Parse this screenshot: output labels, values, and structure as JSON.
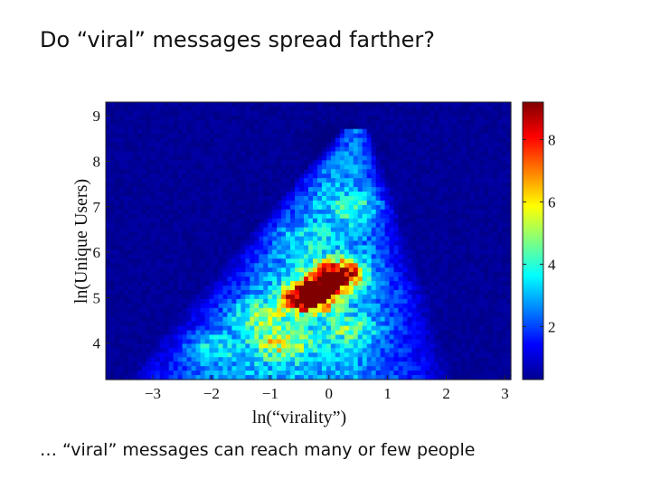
{
  "slide": {
    "title": "Do “viral” messages spread farther?",
    "caption": "… “viral” messages can reach many or few people"
  },
  "chart_data": {
    "type": "heatmap",
    "title": "",
    "xlabel": "ln(“virality”)",
    "ylabel": "ln(Unique Users)",
    "xlim": [
      -3.8,
      3.1
    ],
    "ylim": [
      3.2,
      9.3
    ],
    "xticks": [
      -3,
      -2,
      -1,
      0,
      1,
      2,
      3
    ],
    "xtick_labels": [
      "−3",
      "−2",
      "−1",
      "0",
      "1",
      "2",
      "3"
    ],
    "yticks": [
      4,
      5,
      6,
      7,
      8,
      9
    ],
    "ytick_labels": [
      "4",
      "5",
      "6",
      "7",
      "8",
      "9"
    ],
    "colorbar": {
      "range": [
        0.3,
        9.2
      ],
      "ticks": [
        2,
        4,
        6,
        8
      ],
      "tick_labels": [
        "2",
        "4",
        "6",
        "8"
      ],
      "colormap": "jet"
    },
    "grid": false,
    "density_peaks": [
      {
        "x": -0.3,
        "y": 5.0,
        "value": 9.0
      },
      {
        "x": 0.1,
        "y": 5.5,
        "value": 8.2
      },
      {
        "x": -0.8,
        "y": 4.0,
        "value": 5.5
      },
      {
        "x": -2.0,
        "y": 3.9,
        "value": 4.0
      },
      {
        "x": -1.2,
        "y": 4.6,
        "value": 4.5
      },
      {
        "x": 0.4,
        "y": 4.3,
        "value": 4.2
      },
      {
        "x": 0.5,
        "y": 7.0,
        "value": 4.0
      },
      {
        "x": -0.5,
        "y": 6.3,
        "value": 3.2
      },
      {
        "x": 1.3,
        "y": 5.0,
        "value": 2.8
      },
      {
        "x": 0.2,
        "y": 8.4,
        "value": 2.0
      }
    ]
  }
}
